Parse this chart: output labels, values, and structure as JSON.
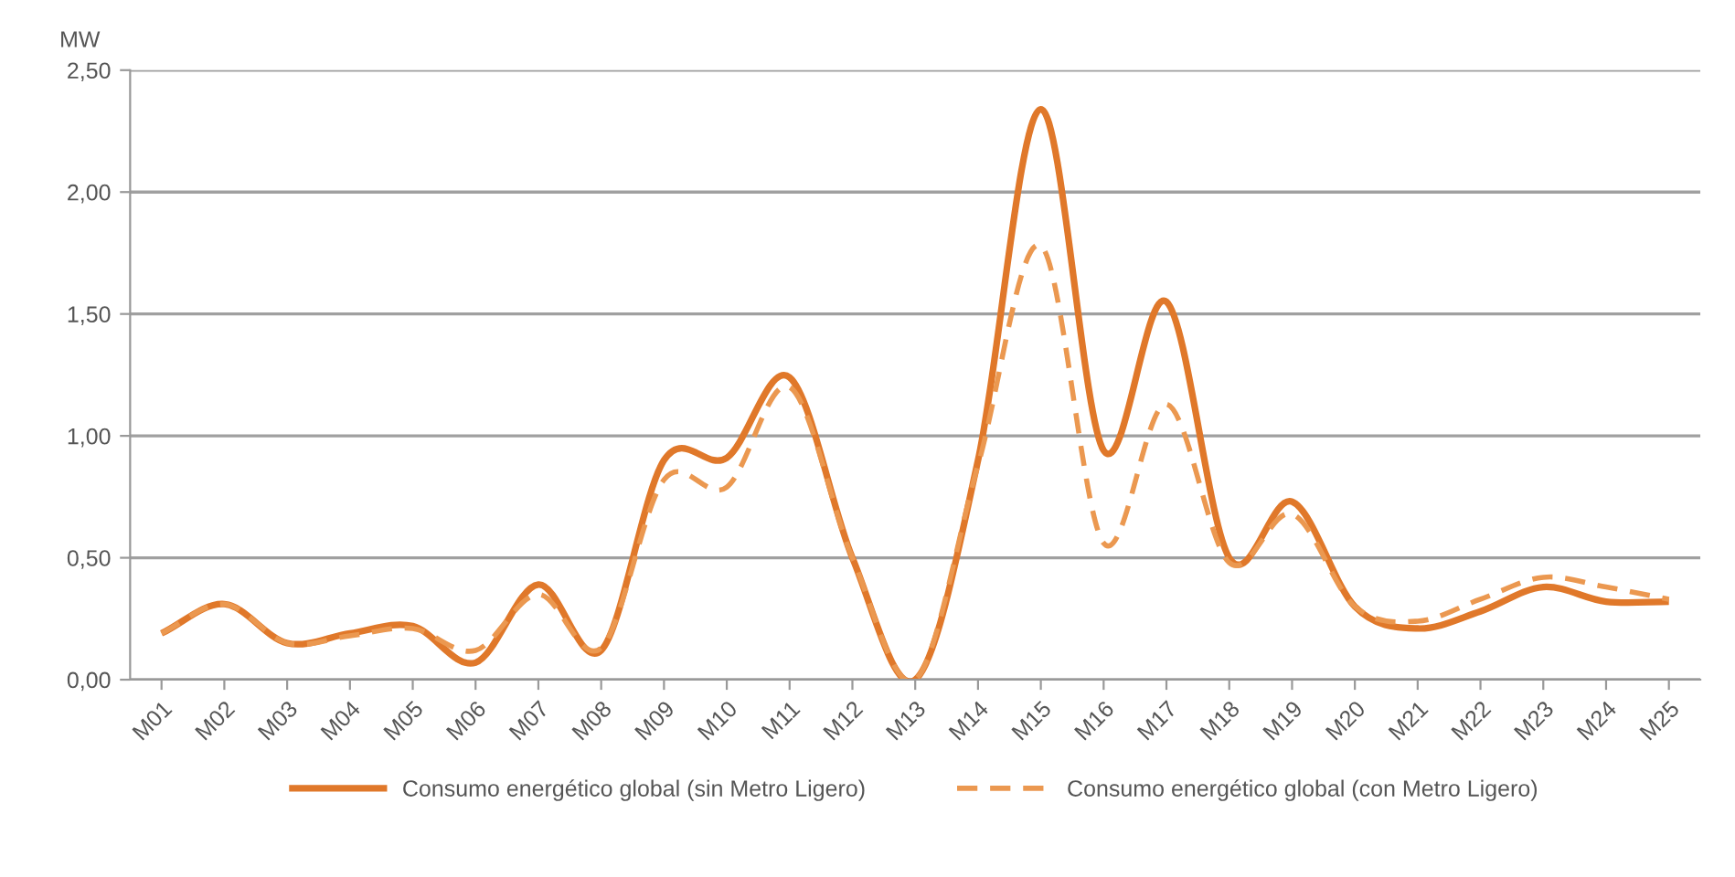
{
  "chart_data": {
    "type": "line",
    "ylabel": "MW",
    "categories": [
      "M01",
      "M02",
      "M03",
      "M04",
      "M05",
      "M06",
      "M07",
      "M08",
      "M09",
      "M10",
      "M11",
      "M12",
      "M13",
      "M14",
      "M15",
      "M16",
      "M17",
      "M18",
      "M19",
      "M20",
      "M21",
      "M22",
      "M23",
      "M24",
      "M25"
    ],
    "series": [
      {
        "name": "Consumo energético global (sin Metro Ligero)",
        "color": "#e0782a",
        "line_style": "solid",
        "values": [
          0.19,
          0.31,
          0.15,
          0.19,
          0.22,
          0.07,
          0.39,
          0.12,
          0.9,
          0.91,
          1.24,
          0.5,
          0.0,
          0.9,
          2.34,
          0.94,
          1.55,
          0.5,
          0.73,
          0.3,
          0.21,
          0.28,
          0.38,
          0.32,
          0.32
        ]
      },
      {
        "name": "Consumo energético global (con Metro Ligero)",
        "color": "#eb9850",
        "line_style": "dashed",
        "values": [
          0.19,
          0.31,
          0.15,
          0.18,
          0.21,
          0.12,
          0.35,
          0.13,
          0.82,
          0.79,
          1.2,
          0.5,
          0.0,
          0.88,
          1.78,
          0.56,
          1.13,
          0.48,
          0.68,
          0.3,
          0.24,
          0.33,
          0.42,
          0.38,
          0.33
        ]
      }
    ],
    "ylim": [
      0,
      2.5
    ],
    "yticks": [
      {
        "value": 0,
        "label": "0,00"
      },
      {
        "value": 0.5,
        "label": "0,50"
      },
      {
        "value": 1,
        "label": "1,00"
      },
      {
        "value": 1.5,
        "label": "1,50"
      },
      {
        "value": 2,
        "label": "2,00"
      },
      {
        "value": 2.5,
        "label": "2,50"
      }
    ],
    "grid": "y",
    "legend": "bottom",
    "marker": "none"
  }
}
